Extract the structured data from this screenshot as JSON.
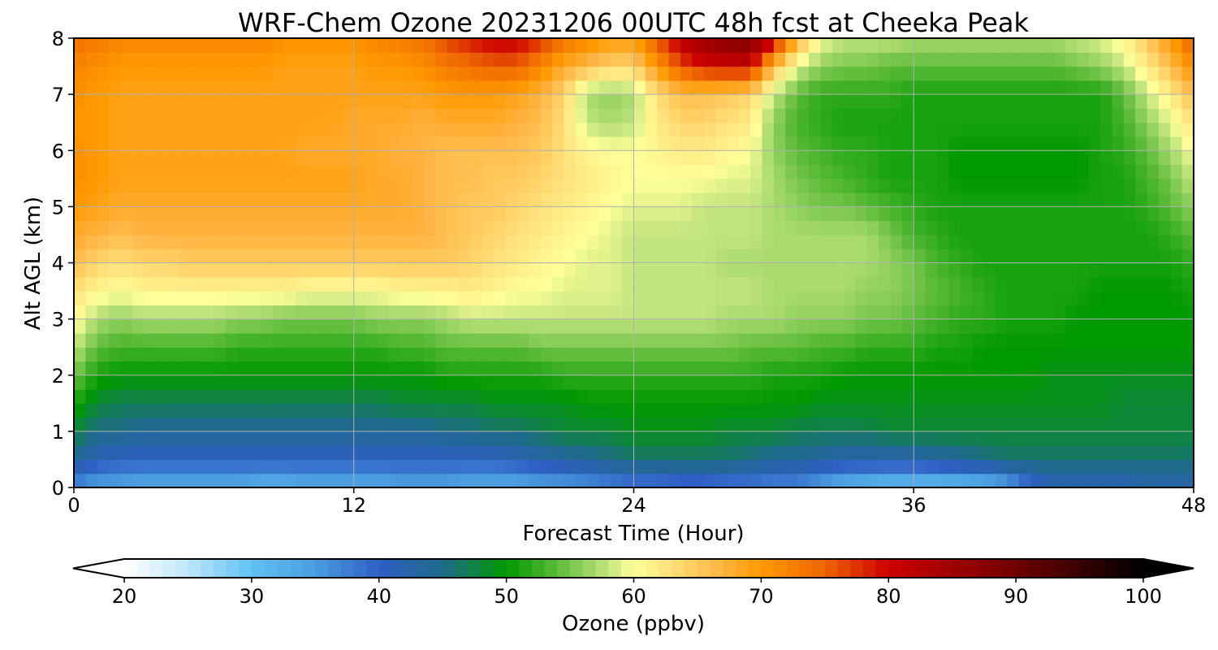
{
  "chart_data": {
    "type": "heatmap",
    "title": "WRF-Chem Ozone  20231206 00UTC 48h fcst at Cheeka Peak",
    "xlabel": "Forecast Time (Hour)",
    "ylabel": "Alt AGL (km)",
    "xlim": [
      0,
      48
    ],
    "ylim": [
      0,
      8
    ],
    "x_ticks": [
      "0",
      "12",
      "24",
      "36",
      "48"
    ],
    "y_ticks": [
      "0",
      "1",
      "2",
      "3",
      "4",
      "5",
      "6",
      "7",
      "8"
    ],
    "grid": true,
    "x_hours": [
      0,
      1,
      2,
      3,
      4,
      5,
      6,
      7,
      8,
      9,
      10,
      11,
      12,
      13,
      14,
      15,
      16,
      17,
      18,
      19,
      20,
      21,
      22,
      23,
      24,
      25,
      26,
      27,
      28,
      29,
      30,
      31,
      32,
      33,
      34,
      35,
      36,
      37,
      38,
      39,
      40,
      41,
      42,
      43,
      44,
      45,
      46,
      47,
      48
    ],
    "levels_km": [
      0,
      0.5,
      1,
      1.5,
      2,
      2.5,
      3,
      3.5,
      4,
      4.5,
      5,
      5.5,
      6,
      6.5,
      7,
      7.5,
      8
    ],
    "values_ppbv": [
      [
        36,
        34,
        34,
        33,
        33,
        33,
        33,
        33,
        32,
        32,
        33,
        33,
        33,
        33,
        34,
        34,
        34,
        33,
        33,
        33,
        34,
        34,
        35,
        36,
        37,
        37,
        38,
        38,
        37,
        37,
        36,
        36,
        34,
        32,
        31,
        30,
        30,
        30,
        30,
        31,
        33,
        38,
        41,
        41,
        41,
        41,
        42,
        42,
        42
      ],
      [
        44,
        41,
        40,
        40,
        40,
        40,
        40,
        40,
        40,
        40,
        40,
        40,
        40,
        40,
        40,
        40,
        40,
        40,
        40,
        41,
        42,
        43,
        44,
        45,
        46,
        46,
        46,
        46,
        46,
        45,
        44,
        44,
        43,
        42,
        42,
        42,
        42,
        43,
        44,
        45,
        46,
        46,
        46,
        46,
        46,
        46,
        46,
        46,
        46
      ],
      [
        48,
        45,
        45,
        44,
        44,
        44,
        44,
        44,
        44,
        44,
        44,
        44,
        44,
        44,
        44,
        44,
        45,
        45,
        46,
        46,
        47,
        48,
        48,
        48,
        49,
        49,
        49,
        49,
        48,
        48,
        48,
        47,
        47,
        47,
        47,
        48,
        48,
        48,
        48,
        48,
        48,
        48,
        48,
        48,
        48,
        48,
        48,
        48,
        48
      ],
      [
        51,
        48,
        47,
        47,
        47,
        47,
        47,
        47,
        47,
        47,
        47,
        47,
        47,
        47,
        48,
        48,
        48,
        48,
        49,
        49,
        49,
        49,
        50,
        50,
        50,
        50,
        50,
        50,
        50,
        50,
        50,
        50,
        49,
        49,
        49,
        49,
        49,
        49,
        49,
        49,
        49,
        49,
        49,
        49,
        49,
        48,
        48,
        48,
        48
      ],
      [
        55,
        51,
        50,
        50,
        50,
        50,
        50,
        50,
        50,
        50,
        50,
        50,
        50,
        50,
        50,
        50,
        51,
        51,
        51,
        51,
        51,
        52,
        52,
        52,
        52,
        52,
        52,
        52,
        52,
        52,
        51,
        51,
        51,
        50,
        50,
        50,
        50,
        50,
        50,
        50,
        50,
        50,
        49,
        49,
        49,
        49,
        49,
        49,
        49
      ],
      [
        58,
        54,
        53,
        53,
        53,
        53,
        53,
        52,
        52,
        52,
        52,
        52,
        52,
        52,
        53,
        53,
        54,
        54,
        54,
        54,
        55,
        55,
        55,
        55,
        55,
        55,
        55,
        55,
        55,
        54,
        54,
        54,
        53,
        53,
        52,
        52,
        52,
        51,
        51,
        50,
        50,
        50,
        50,
        50,
        50,
        50,
        50,
        50,
        50
      ],
      [
        61,
        57,
        56,
        57,
        57,
        57,
        57,
        56,
        56,
        55,
        55,
        55,
        55,
        56,
        56,
        56,
        57,
        58,
        58,
        58,
        58,
        58,
        58,
        58,
        58,
        58,
        58,
        58,
        57,
        57,
        57,
        56,
        56,
        56,
        55,
        55,
        54,
        53,
        52,
        52,
        51,
        51,
        51,
        50,
        50,
        50,
        50,
        50,
        50
      ],
      [
        63,
        61,
        60,
        61,
        61,
        61,
        61,
        61,
        61,
        61,
        60,
        60,
        60,
        60,
        61,
        61,
        61,
        62,
        61,
        60,
        60,
        59,
        59,
        59,
        58,
        58,
        58,
        58,
        58,
        58,
        57,
        57,
        57,
        57,
        56,
        56,
        55,
        54,
        53,
        52,
        51,
        51,
        51,
        51,
        50,
        50,
        50,
        50,
        51
      ],
      [
        66,
        64,
        63,
        64,
        64,
        65,
        65,
        65,
        65,
        65,
        65,
        65,
        65,
        65,
        65,
        65,
        65,
        64,
        63,
        62,
        61,
        60,
        59,
        59,
        58,
        58,
        58,
        58,
        57,
        57,
        57,
        57,
        57,
        57,
        57,
        56,
        55,
        53,
        52,
        51,
        51,
        51,
        51,
        51,
        51,
        51,
        51,
        51,
        52
      ],
      [
        68,
        67,
        66,
        67,
        67,
        67,
        67,
        67,
        67,
        67,
        67,
        67,
        67,
        67,
        67,
        67,
        66,
        65,
        64,
        63,
        62,
        61,
        60,
        59,
        58,
        58,
        58,
        58,
        58,
        58,
        57,
        57,
        57,
        57,
        57,
        55,
        53,
        52,
        51,
        51,
        51,
        51,
        51,
        51,
        51,
        51,
        51,
        52,
        54
      ],
      [
        70,
        69,
        68,
        68,
        68,
        68,
        68,
        68,
        68,
        68,
        68,
        68,
        68,
        68,
        68,
        67,
        66,
        65,
        65,
        64,
        63,
        62,
        61,
        60,
        59,
        59,
        59,
        58,
        58,
        58,
        57,
        56,
        55,
        55,
        54,
        53,
        52,
        51,
        51,
        51,
        51,
        51,
        51,
        51,
        51,
        51,
        52,
        54,
        56
      ],
      [
        71,
        70,
        69,
        69,
        69,
        69,
        69,
        69,
        69,
        69,
        69,
        69,
        69,
        68,
        68,
        67,
        66,
        66,
        65,
        65,
        64,
        63,
        62,
        61,
        60,
        60,
        60,
        60,
        59,
        59,
        57,
        55,
        54,
        53,
        52,
        51,
        51,
        51,
        50,
        50,
        50,
        50,
        50,
        50,
        51,
        51,
        53,
        55,
        58
      ],
      [
        71,
        70,
        69,
        69,
        69,
        69,
        69,
        69,
        69,
        69,
        68,
        68,
        68,
        68,
        67,
        67,
        66,
        66,
        66,
        66,
        65,
        63,
        61,
        60,
        60,
        61,
        62,
        62,
        61,
        60,
        56,
        54,
        53,
        52,
        52,
        51,
        51,
        51,
        50,
        50,
        50,
        50,
        50,
        50,
        51,
        52,
        54,
        57,
        60
      ],
      [
        70,
        70,
        69,
        69,
        69,
        69,
        69,
        69,
        69,
        69,
        69,
        69,
        68,
        68,
        68,
        67,
        68,
        68,
        68,
        67,
        66,
        63,
        58,
        57,
        58,
        62,
        64,
        64,
        63,
        62,
        56,
        53,
        52,
        51,
        51,
        51,
        51,
        51,
        51,
        51,
        51,
        51,
        51,
        51,
        51,
        53,
        56,
        59,
        63
      ],
      [
        71,
        70,
        69,
        69,
        69,
        69,
        69,
        69,
        69,
        69,
        69,
        69,
        69,
        69,
        69,
        69,
        70,
        70,
        70,
        69,
        67,
        64,
        57,
        56,
        57,
        63,
        66,
        66,
        65,
        64,
        58,
        54,
        52,
        52,
        52,
        52,
        51,
        51,
        51,
        51,
        51,
        51,
        51,
        51,
        51,
        54,
        58,
        62,
        66
      ],
      [
        72,
        71,
        70,
        70,
        70,
        70,
        70,
        70,
        70,
        69,
        69,
        69,
        69,
        70,
        70,
        71,
        73,
        74,
        75,
        75,
        72,
        68,
        66,
        64,
        64,
        70,
        76,
        79,
        80,
        80,
        66,
        59,
        56,
        55,
        55,
        54,
        54,
        54,
        54,
        54,
        54,
        54,
        54,
        55,
        56,
        58,
        62,
        66,
        71
      ],
      [
        74,
        73,
        72,
        72,
        72,
        72,
        72,
        72,
        72,
        71,
        71,
        71,
        71,
        72,
        73,
        74,
        77,
        79,
        81,
        81,
        78,
        74,
        72,
        70,
        70,
        76,
        82,
        86,
        88,
        89,
        82,
        68,
        60,
        58,
        58,
        58,
        57,
        57,
        57,
        57,
        57,
        57,
        57,
        58,
        59,
        61,
        65,
        70,
        76
      ]
    ],
    "colorbar": {
      "label": "Ozone  (ppbv)",
      "min": 20,
      "max": 100,
      "ticks": [
        "20",
        "30",
        "40",
        "50",
        "60",
        "70",
        "80",
        "90",
        "100"
      ],
      "extend": "both",
      "extend_low_color": "#ffffff",
      "extend_high_color": "#000000",
      "stops": [
        {
          "v": 20,
          "c": "#ffffff"
        },
        {
          "v": 25,
          "c": "#bfe6f8"
        },
        {
          "v": 30,
          "c": "#5fc2f3"
        },
        {
          "v": 35,
          "c": "#4a9de0"
        },
        {
          "v": 40,
          "c": "#2f5fc4"
        },
        {
          "v": 45,
          "c": "#1e6a8a"
        },
        {
          "v": 50,
          "c": "#009900"
        },
        {
          "v": 54,
          "c": "#5dbb3a"
        },
        {
          "v": 58,
          "c": "#c3e57e"
        },
        {
          "v": 60,
          "c": "#ffff99"
        },
        {
          "v": 63,
          "c": "#ffe07a"
        },
        {
          "v": 67,
          "c": "#ffb340"
        },
        {
          "v": 70,
          "c": "#ff9900"
        },
        {
          "v": 75,
          "c": "#ee6600"
        },
        {
          "v": 80,
          "c": "#cc0000"
        },
        {
          "v": 85,
          "c": "#a00000"
        },
        {
          "v": 90,
          "c": "#700000"
        },
        {
          "v": 95,
          "c": "#380000"
        },
        {
          "v": 100,
          "c": "#000000"
        }
      ]
    }
  }
}
